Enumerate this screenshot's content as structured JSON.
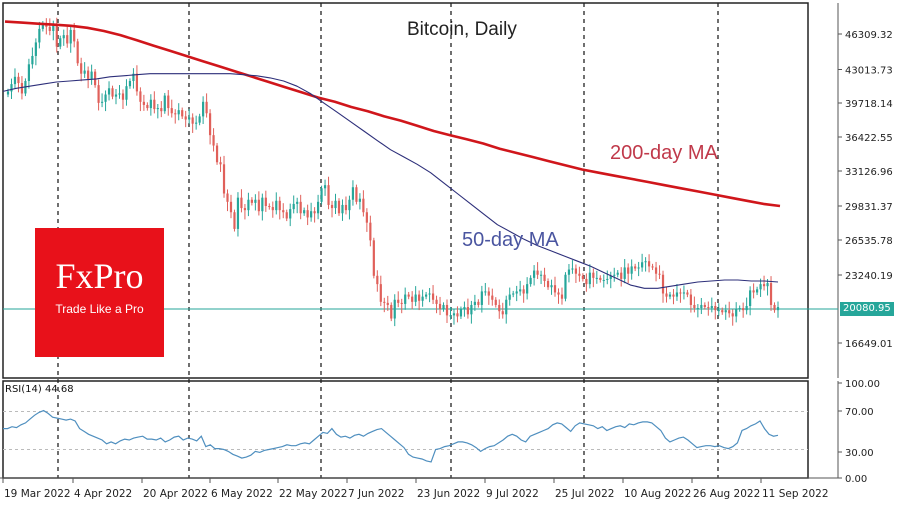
{
  "chart_data": {
    "type": "candlestick",
    "title": "Bitcoin, Daily",
    "xlabel": "",
    "ylabel": "",
    "grid": false,
    "price_panel": {
      "ylim": [
        16649.01,
        46309.32
      ],
      "y_ticks": [
        "46309.32",
        "43013.73",
        "39718.14",
        "36422.55",
        "33126.96",
        "29831.37",
        "26535.78",
        "23240.19",
        "16649.01"
      ],
      "current_price": "20080.95",
      "annotations": [
        "200-day MA",
        "50-day MA"
      ],
      "closes": [
        40800,
        41500,
        42200,
        41600,
        40600,
        41800,
        43400,
        44200,
        45500,
        46800,
        47300,
        47000,
        46600,
        47200,
        45100,
        45900,
        46200,
        45400,
        46700,
        45600,
        43500,
        42500,
        42800,
        42000,
        42700,
        41400,
        39700,
        39800,
        40500,
        41100,
        40300,
        40500,
        40600,
        40000,
        41300,
        41800,
        42500,
        40800,
        39800,
        39500,
        39200,
        40000,
        39100,
        39200,
        38900,
        40400,
        39200,
        38700,
        38600,
        39000,
        38400,
        38100,
        38300,
        37700,
        37800,
        38400,
        39800,
        38700,
        36600,
        35600,
        34000,
        33800,
        31000,
        30200,
        29200,
        27600,
        30600,
        29600,
        29400,
        30400,
        30100,
        30400,
        29300,
        30600,
        29800,
        29700,
        29400,
        30300,
        29400,
        29200,
        28600,
        29500,
        30000,
        30200,
        29100,
        29400,
        28700,
        29300,
        29100,
        30200,
        31500,
        31800,
        29900,
        29600,
        30300,
        29100,
        29900,
        29400,
        30400,
        31600,
        30200,
        30500,
        29200,
        28200,
        26500,
        23100,
        22300,
        20600,
        20500,
        20300,
        19000,
        20800,
        20500,
        20400,
        21300,
        21100,
        20600,
        21300,
        20700,
        21100,
        21300,
        21400,
        20800,
        20400,
        19900,
        20300,
        19300,
        19300,
        19500,
        19200,
        19900,
        20100,
        19400,
        20300,
        20600,
        20300,
        21600,
        21600,
        21200,
        20800,
        20300,
        19700,
        19400,
        20800,
        21300,
        21400,
        21600,
        21800,
        21400,
        22300,
        22900,
        23600,
        23200,
        23200,
        22600,
        22000,
        22200,
        21500,
        21300,
        20900,
        23200,
        23700,
        23800,
        23300,
        23100,
        22800,
        22300,
        23400,
        22900,
        22900,
        22700,
        22700,
        22800,
        23100,
        23200,
        23400,
        22800,
        23900,
        23300,
        24000,
        23800,
        23900,
        24400,
        24500,
        24000,
        23900,
        23300,
        23200,
        21400,
        21100,
        21300,
        21100,
        21500,
        21400,
        21500,
        21300,
        20300,
        20000,
        20000,
        20300,
        20100,
        20000,
        20200,
        19800,
        19800,
        19600,
        19800,
        19500,
        19200,
        19900,
        20000,
        19800,
        20200,
        21700,
        21500,
        21800,
        22300,
        22100,
        22400,
        20300,
        19800,
        20100
      ],
      "ma50": [
        40800,
        41100,
        41300,
        41500,
        41700,
        41800,
        41900,
        42000,
        42200,
        42300,
        42400,
        42500,
        42500,
        42500,
        42500,
        42500,
        42500,
        42500,
        42400,
        42300,
        42100,
        41800,
        41300,
        40600,
        39700,
        38800,
        37900,
        37000,
        36100,
        35200,
        34500,
        33800,
        33000,
        32000,
        31000,
        30000,
        29000,
        28000,
        27300,
        26600,
        26000,
        25500,
        25000,
        24500,
        24000,
        23400,
        22800,
        22200,
        21900,
        21900,
        22100,
        22300,
        22500,
        22600,
        22700,
        22700,
        22600,
        22600,
        22500
      ],
      "ma200": [
        47500,
        47400,
        47300,
        47200,
        47100,
        46900,
        46600,
        46200,
        45700,
        45200,
        44700,
        44200,
        43700,
        43200,
        42700,
        42200,
        41700,
        41200,
        40700,
        40200,
        39800,
        39300,
        38900,
        38400,
        38000,
        37500,
        37000,
        36600,
        36200,
        35800,
        35300,
        34900,
        34500,
        34100,
        33700,
        33300,
        33000,
        32700,
        32400,
        32100,
        31800,
        31500,
        31200,
        30900,
        30600,
        30300,
        30000,
        29800
      ]
    },
    "rsi_panel": {
      "label": "RSI(14) 44.68",
      "ylim": [
        0,
        100
      ],
      "y_ticks": [
        "100.00",
        "70.00",
        "30.00",
        "0.00"
      ],
      "levels": [
        70,
        30
      ],
      "values": [
        52,
        52,
        54,
        53,
        56,
        58,
        62,
        66,
        69,
        71,
        68,
        64,
        63,
        62,
        61,
        62,
        60,
        52,
        49,
        46,
        44,
        42,
        40,
        36,
        38,
        36,
        39,
        41,
        40,
        42,
        43,
        44,
        41,
        41,
        40,
        42,
        38,
        40,
        43,
        44,
        40,
        42,
        41,
        39,
        44,
        33,
        35,
        31,
        31,
        30,
        28,
        25,
        23,
        21,
        22,
        24,
        28,
        27,
        29,
        30,
        31,
        32,
        33,
        35,
        34,
        34,
        36,
        37,
        36,
        40,
        44,
        48,
        47,
        52,
        46,
        43,
        44,
        42,
        45,
        46,
        44,
        47,
        49,
        51,
        52,
        48,
        44,
        40,
        36,
        32,
        25,
        22,
        21,
        20,
        18,
        17,
        30,
        31,
        33,
        34,
        36,
        38,
        38,
        37,
        35,
        32,
        28,
        31,
        33,
        34,
        37,
        40,
        44,
        46,
        44,
        40,
        38,
        44,
        46,
        48,
        50,
        52,
        56,
        58,
        57,
        53,
        49,
        55,
        58,
        57,
        56,
        55,
        52,
        54,
        50,
        52,
        54,
        55,
        53,
        57,
        56,
        58,
        59,
        59,
        58,
        54,
        50,
        42,
        38,
        40,
        42,
        43,
        40,
        36,
        32,
        33,
        34,
        34,
        33,
        34,
        32,
        31,
        33,
        37,
        50,
        52,
        55,
        57,
        60,
        52,
        46,
        44,
        45
      ]
    },
    "x_ticks": [
      "19 Mar 2022",
      "4 Apr 2022",
      "20 Apr 2022",
      "6 May 2022",
      "22 May 2022",
      "7 Jun 2022",
      "23 Jun 2022",
      "9 Jul 2022",
      "25 Jul 2022",
      "10 Aug 2022",
      "26 Aug 2022",
      "11 Sep 2022"
    ],
    "colors": {
      "bull": "#26a69a",
      "bear": "#e0605a",
      "ma200": "#d0161b",
      "ma50": "#2d2f7a",
      "price_line": "#26a69a",
      "rsi": "#4f8fbf",
      "brand": "#e8111a"
    }
  },
  "labels": {
    "title": "Bitcoin, Daily",
    "ma200": "200-day MA",
    "ma50": "50-day MA",
    "rsi": "RSI(14) 44.68",
    "price_tag": "20080.95"
  },
  "logo": {
    "brand": "FxPro",
    "tagline": "Trade Like a Pro"
  }
}
